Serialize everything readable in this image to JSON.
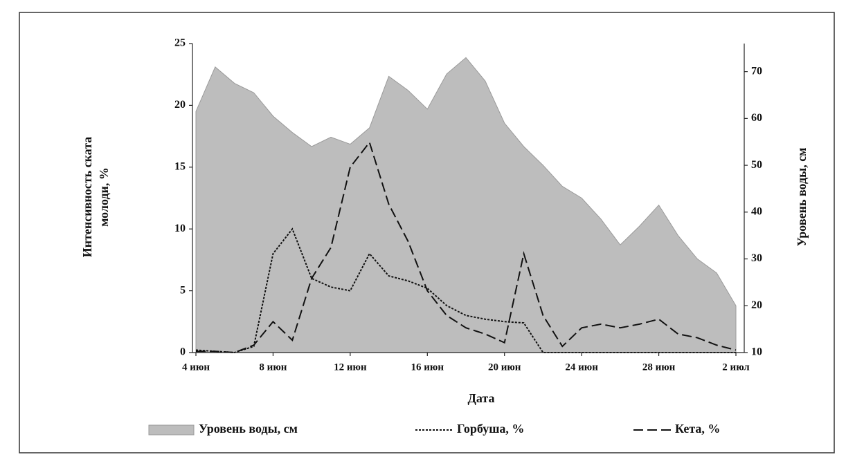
{
  "chart_data": {
    "type": "area-line",
    "xlabel": "Дата",
    "ylabel": [
      "Интенсивность ската",
      "молоди, %"
    ],
    "y2label": "Уровень воды, см",
    "categories": [
      "4 июн",
      null,
      null,
      null,
      "8 июн",
      null,
      null,
      null,
      "12 июн",
      null,
      null,
      null,
      "16 июн",
      null,
      null,
      null,
      "20 июн",
      null,
      null,
      null,
      "24 июн",
      null,
      null,
      null,
      "28 июн",
      null,
      null,
      null,
      "2 июл"
    ],
    "ylim": [
      0,
      25
    ],
    "yticks": [
      0,
      5,
      10,
      15,
      20,
      25
    ],
    "y2lim": [
      10,
      76
    ],
    "y2ticks": [
      10,
      20,
      30,
      40,
      50,
      60,
      70
    ],
    "series": [
      {
        "name": "Уровень воды, см",
        "kind": "area",
        "axis": "y2",
        "color": "#bdbdbd",
        "values": [
          61.5,
          71,
          67.5,
          65.5,
          60.5,
          57,
          54,
          56,
          54.5,
          58,
          69,
          66,
          62,
          69.5,
          73,
          68,
          59,
          54,
          50,
          45.5,
          43,
          38.5,
          33,
          37,
          41.5,
          35,
          30,
          27,
          20
        ]
      },
      {
        "name": "Горбуша, %",
        "kind": "dotted",
        "color": "#111111",
        "values": [
          0.2,
          0.1,
          0,
          0.5,
          8,
          10,
          6,
          5.3,
          5,
          8,
          6.2,
          5.8,
          5.2,
          3.8,
          3,
          2.7,
          2.5,
          2.4,
          0,
          0,
          0,
          0,
          0,
          0,
          0,
          0,
          0,
          0,
          0
        ]
      },
      {
        "name": "Кета, %",
        "kind": "dashed",
        "color": "#111111",
        "values": [
          0.1,
          0.1,
          0,
          0.6,
          2.5,
          1,
          6,
          8.5,
          15,
          17,
          12,
          9,
          5,
          3,
          2,
          1.5,
          0.8,
          8,
          3,
          0.5,
          2,
          2.3,
          2,
          2.3,
          2.7,
          1.5,
          1.2,
          0.6,
          0.2
        ]
      }
    ]
  }
}
